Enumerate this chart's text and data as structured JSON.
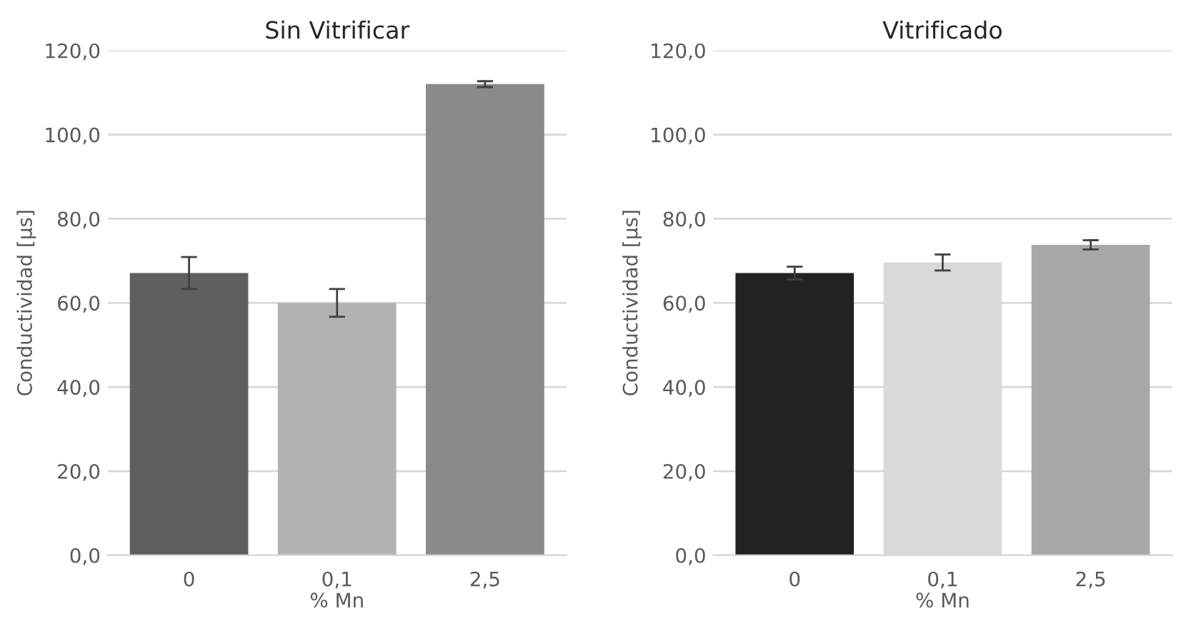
{
  "chart_data": [
    {
      "type": "bar",
      "title": "Sin Vitrificar",
      "xlabel": "% Mn",
      "ylabel": "Conductividad [µs]",
      "categories": [
        "0",
        "0,1",
        "2,5"
      ],
      "values": [
        67.1,
        60.0,
        112.0
      ],
      "colors": [
        "#5f5f5f",
        "#b2b2b2",
        "#8a8a8a"
      ],
      "errors": [
        3.8,
        3.3,
        0.7
      ],
      "ylim": [
        0,
        120
      ],
      "yticks": [
        {
          "value": 0,
          "label": "0,0"
        },
        {
          "value": 20,
          "label": "20,0"
        },
        {
          "value": 40,
          "label": "40,0"
        },
        {
          "value": 60,
          "label": "60,0"
        },
        {
          "value": 80,
          "label": "80,0"
        },
        {
          "value": 100,
          "label": "100,0"
        },
        {
          "value": 120,
          "label": "120,0"
        }
      ],
      "grid": "y",
      "legend": false
    },
    {
      "type": "bar",
      "title": "Vitrificado",
      "xlabel": "% Mn",
      "ylabel": "Conductividad [µs]",
      "categories": [
        "0",
        "0,1",
        "2,5"
      ],
      "values": [
        67.1,
        69.6,
        73.8
      ],
      "colors": [
        "#222222",
        "#d9d9d9",
        "#a8a8a8"
      ],
      "errors": [
        1.5,
        1.9,
        1.1
      ],
      "ylim": [
        0,
        120
      ],
      "yticks": [
        {
          "value": 0,
          "label": "0,0"
        },
        {
          "value": 20,
          "label": "20,0"
        },
        {
          "value": 40,
          "label": "40,0"
        },
        {
          "value": 60,
          "label": "60,0"
        },
        {
          "value": 80,
          "label": "80,0"
        },
        {
          "value": 100,
          "label": "100,0"
        },
        {
          "value": 120,
          "label": "120,0"
        }
      ],
      "grid": "y",
      "legend": false
    }
  ]
}
